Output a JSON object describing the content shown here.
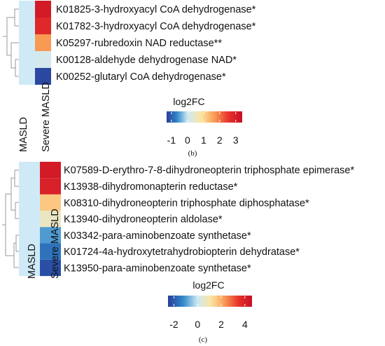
{
  "colors": {
    "scale": [
      "#2a3d9a",
      "#2f86c8",
      "#cfeaf6",
      "#fde4a0",
      "#f89a54",
      "#e8322b",
      "#c60f25"
    ],
    "dendrogram": "#9a9a9a",
    "text": "#111111"
  },
  "chart_data": [
    {
      "type": "heatmap",
      "panel_label": "(b)",
      "columns": [
        "MASLD",
        "Severe MASLD"
      ],
      "rows": [
        "K01825-3-hydroxyacyl CoA dehydrogenase*",
        "K01782-3-hydroxyacyl CoA dehydrogenase*",
        "K05297-rubredoxin NAD reductase**",
        "K00128-aldehyde dehydrogenase NAD*",
        "K00252-glutaryl CoA dehydrogenase*"
      ],
      "values": [
        [
          0,
          3.1
        ],
        [
          0,
          2.8
        ],
        [
          0,
          1.7
        ],
        [
          0,
          0.1
        ],
        [
          0,
          -1.2
        ]
      ],
      "legend": {
        "title": "log2FC",
        "min": -1.3,
        "max": 3.4,
        "ticks": [
          -1,
          0,
          1,
          2,
          3
        ],
        "tick_labels": [
          "-1",
          "0",
          "1",
          "2",
          "3"
        ]
      },
      "dendrogram": "row clustering tree on left"
    },
    {
      "type": "heatmap",
      "panel_label": "(c)",
      "columns": [
        "MASLD",
        "Severe MASLD"
      ],
      "rows": [
        "K07589-D-erythro-7-8-dihydroneopterin triphosphate epimerase*",
        "K13938-dihydromonapterin reductase*",
        "K08310-dihydroneopterin triphosphate diphosphatase*",
        "K13940-dihydroneopterin aldolase*",
        "K03342-para-aminobenzoate synthetase*",
        "K01724-4a-hydroxytetrahydrobiopterin dehydratase*",
        "K13950-para-aminobenzoate synthetase*"
      ],
      "values": [
        [
          0,
          4.2
        ],
        [
          0,
          4.0
        ],
        [
          0,
          1.6
        ],
        [
          0,
          0.7
        ],
        [
          0,
          -1.0
        ],
        [
          0,
          -1.6
        ],
        [
          0,
          -2.2
        ]
      ],
      "legend": {
        "title": "log2FC",
        "min": -2.5,
        "max": 4.6,
        "ticks": [
          -2,
          0,
          2,
          4
        ],
        "tick_labels": [
          "-2",
          "0",
          "2",
          "4"
        ]
      },
      "dendrogram": "row clustering tree on left"
    }
  ]
}
